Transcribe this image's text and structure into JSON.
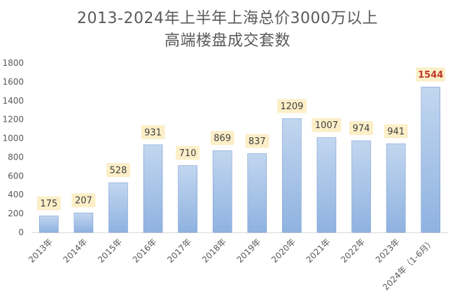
{
  "chart_data": {
    "type": "bar",
    "title_lines": [
      "2013-2024年上半年上海总价3000万以上",
      "高端楼盘成交套数"
    ],
    "categories": [
      "2013年",
      "2014年",
      "2015年",
      "2016年",
      "2017年",
      "2018年",
      "2019年",
      "2020年",
      "2021年",
      "2022年",
      "2023年",
      "2024年（1-6月）"
    ],
    "values": [
      175,
      207,
      528,
      931,
      710,
      869,
      837,
      1209,
      1007,
      974,
      941,
      1544
    ],
    "yticks": [
      0,
      200,
      400,
      600,
      800,
      1000,
      1200,
      1400,
      1600,
      1800
    ],
    "ylim": [
      0,
      1800
    ],
    "xlabel": "",
    "ylabel": "",
    "grid": false,
    "highlight_last": true,
    "colors": {
      "bar_top": "#c2d6ef",
      "bar_bottom": "#8fb2e0",
      "bar_edge": "#7a9fd3",
      "label_bg": "#fcefc8",
      "label_text": "#404040",
      "highlight_text": "#c0392b",
      "axis_text": "#595959",
      "axis_line": "#d9d9d9"
    }
  }
}
